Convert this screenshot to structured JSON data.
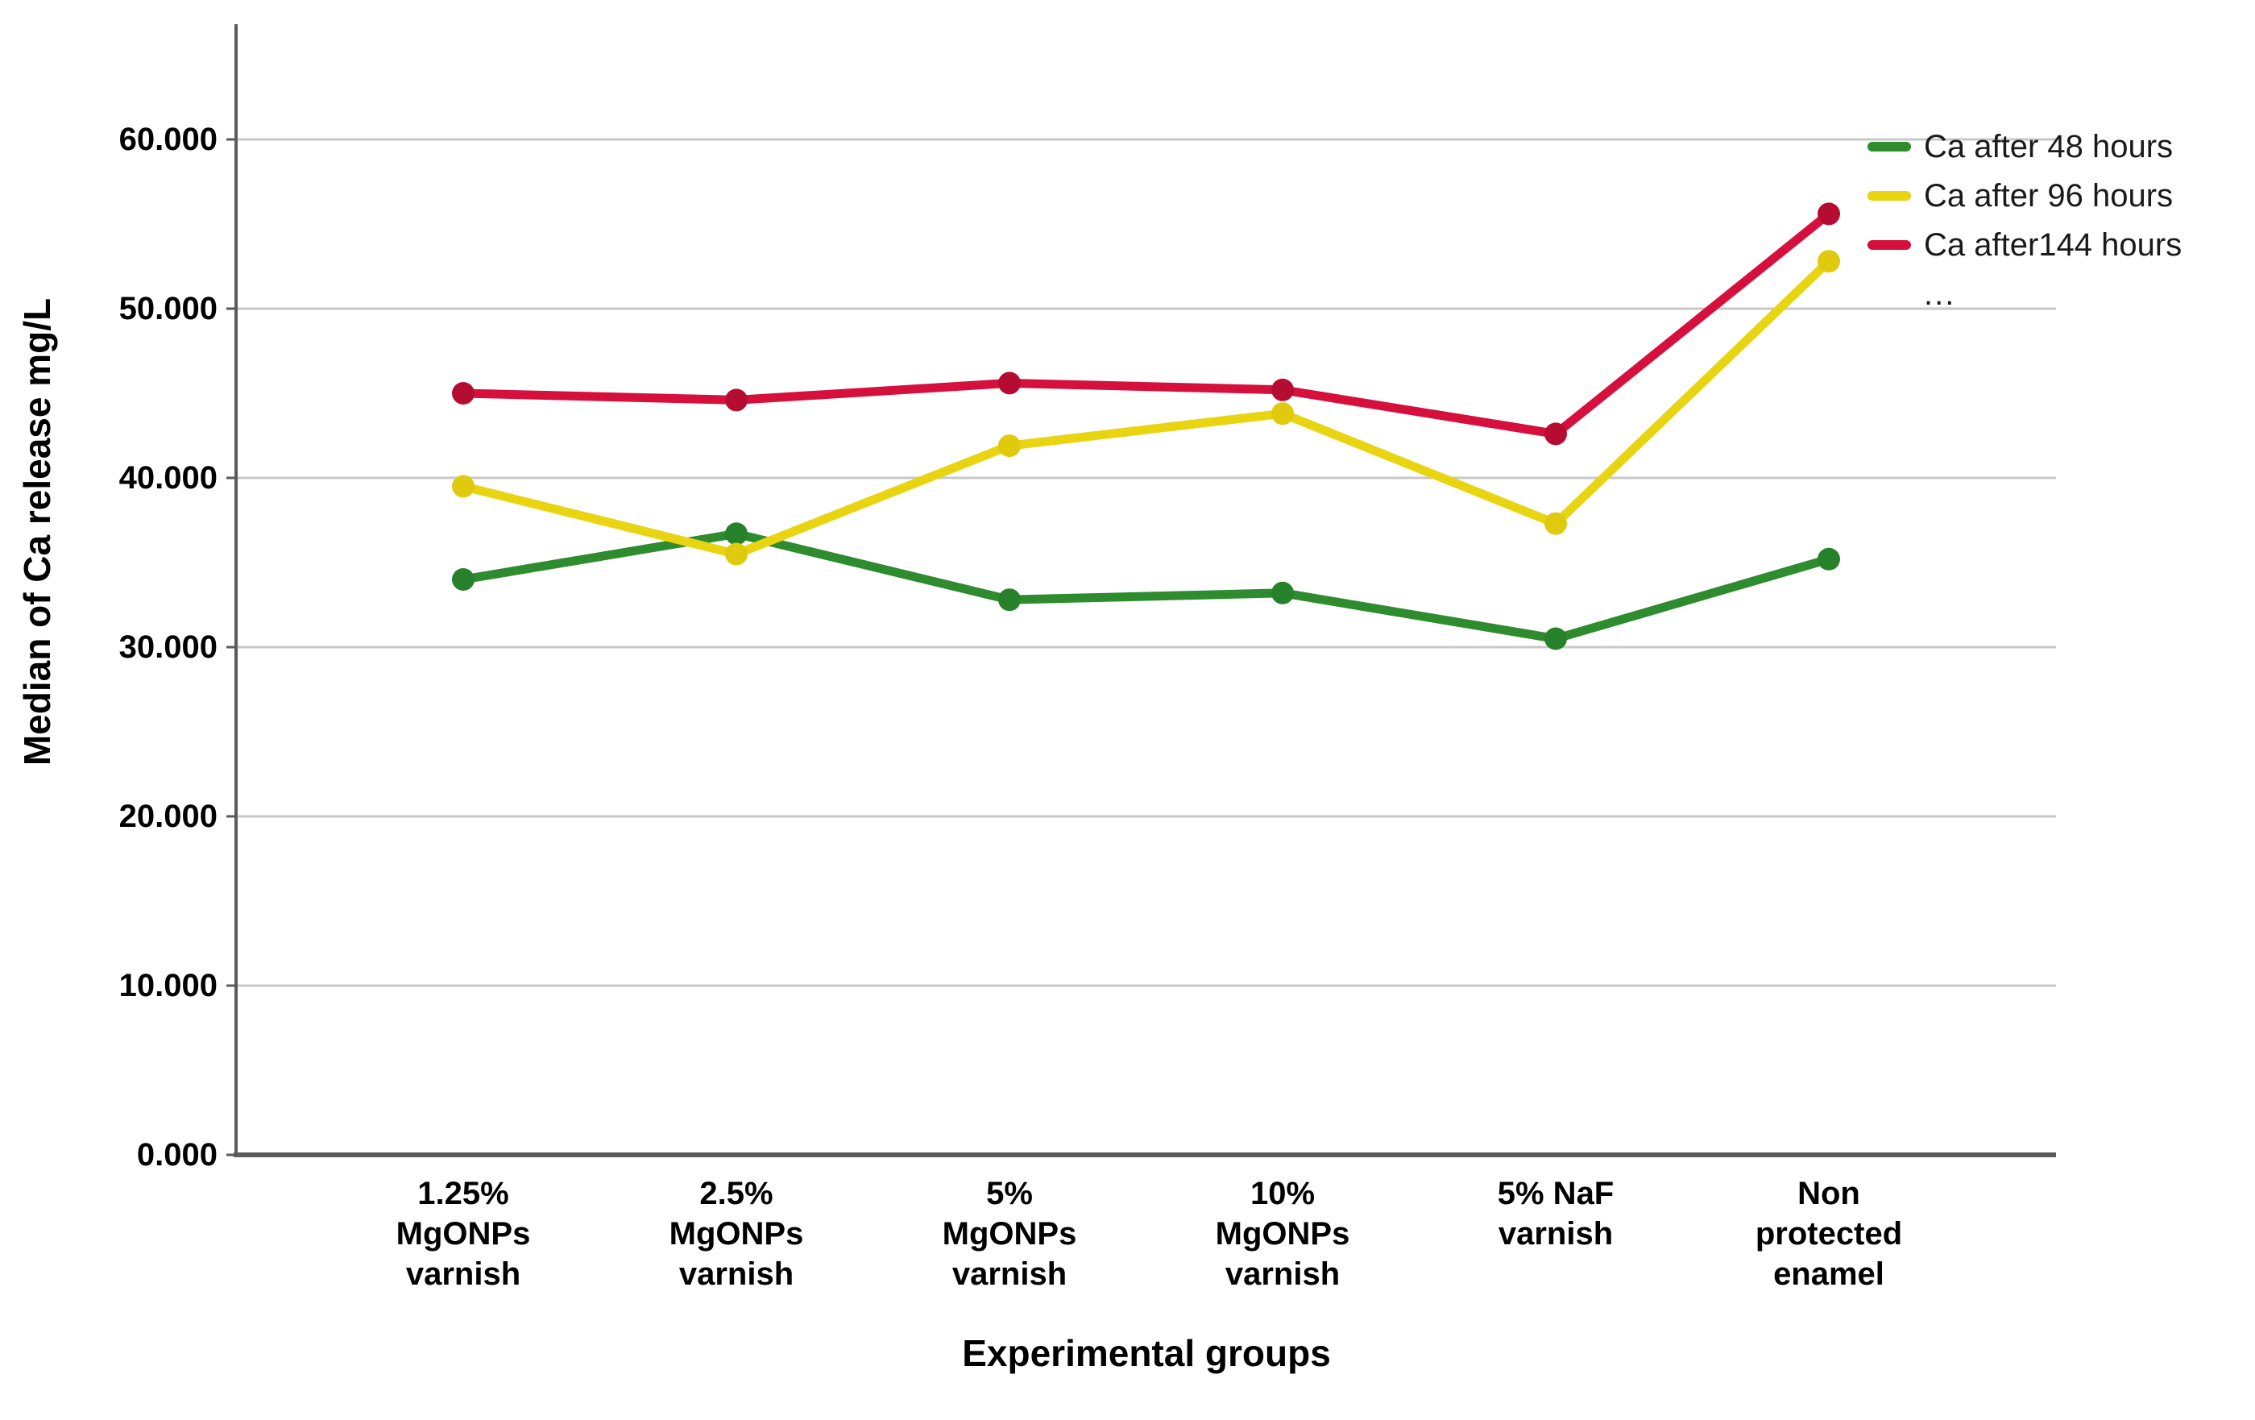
{
  "chart_data": {
    "type": "line",
    "title": "",
    "xlabel": "Experimental groups",
    "ylabel": "Median of Ca release mg/L",
    "categories": [
      {
        "label": "1.25% MgONPs varnish",
        "lines": [
          "1.25%",
          "MgONPs",
          "varnish"
        ]
      },
      {
        "label": "2.5% MgONPs varnish",
        "lines": [
          "2.5%",
          "MgONPs",
          "varnish"
        ]
      },
      {
        "label": "5% MgONPs varnish",
        "lines": [
          "5%",
          "MgONPs",
          "varnish"
        ]
      },
      {
        "label": "10% MgONPs varnish",
        "lines": [
          "10%",
          "MgONPs",
          "varnish"
        ]
      },
      {
        "label": "5% NaF varnish",
        "lines": [
          "5% NaF",
          "varnish"
        ]
      },
      {
        "label": "Non protected enamel",
        "lines": [
          "Non",
          "protected",
          "enamel"
        ]
      }
    ],
    "series": [
      {
        "name": "Ca after 48 hours",
        "color": "#2e8b2e",
        "marker_color": "#27802a",
        "values": [
          34.0,
          36.7,
          32.8,
          33.2,
          30.5,
          35.2
        ]
      },
      {
        "name": "Ca after 96 hours",
        "color": "#e8d411",
        "marker_color": "#e0ca0e",
        "values": [
          39.5,
          35.5,
          41.9,
          43.8,
          37.3,
          52.8
        ]
      },
      {
        "name": "Ca after144 hours",
        "color": "#d6103c",
        "marker_color": "#b50d31",
        "values": [
          45.0,
          44.6,
          45.6,
          45.2,
          42.6,
          55.6
        ]
      }
    ],
    "yticks": [
      {
        "value": 0,
        "label": "0.000"
      },
      {
        "value": 10,
        "label": "10.000"
      },
      {
        "value": 20,
        "label": "20.000"
      },
      {
        "value": 30,
        "label": "30.000"
      },
      {
        "value": 40,
        "label": "40.000"
      },
      {
        "value": 50,
        "label": "50.000"
      },
      {
        "value": 60,
        "label": "60.000"
      }
    ],
    "ylim": [
      0,
      66.5
    ],
    "grid": true,
    "legend_position": "top-right",
    "legend_overflow": "..."
  },
  "colors": {
    "background": "#ffffff",
    "grid": "#c8c8c8",
    "axis": "#5a5a5a",
    "text": "#000000",
    "legend_text": "#1a1a1a"
  }
}
